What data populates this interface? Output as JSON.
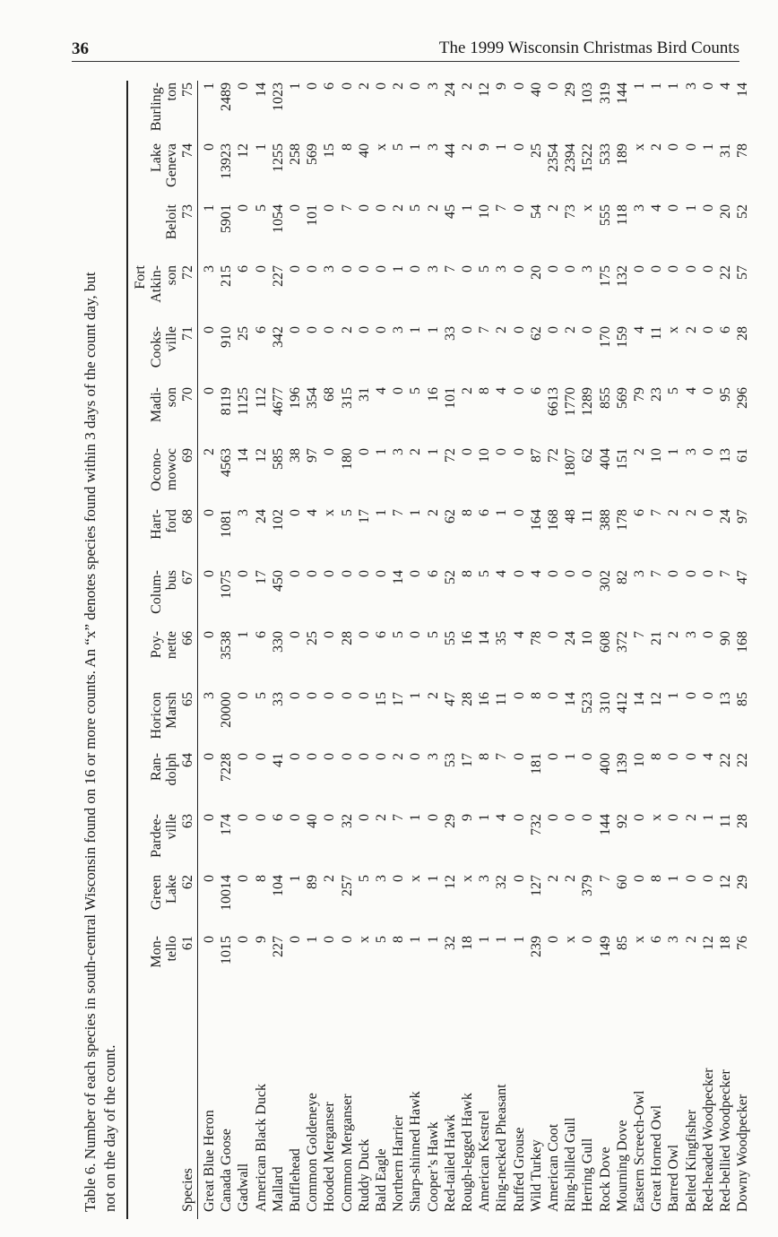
{
  "header": {
    "page_number": "36",
    "title": "The 1999 Wisconsin Christmas Bird Counts"
  },
  "table": {
    "caption_line1": "Table 6. Number of each species in south-central Wisconsin found on 16 or more counts. An “x” denotes species found within 3 days of the count day, but",
    "caption_line2": "not on the day of the count.",
    "species_header": "Species",
    "columns": [
      {
        "lines": [
          "Mon-",
          "tello"
        ],
        "number": "61"
      },
      {
        "lines": [
          "Green",
          "Lake"
        ],
        "number": "62"
      },
      {
        "lines": [
          "Pardee-",
          "ville"
        ],
        "number": "63"
      },
      {
        "lines": [
          "Ran-",
          "dolph"
        ],
        "number": "64"
      },
      {
        "lines": [
          "Horicon",
          "Marsh"
        ],
        "number": "65"
      },
      {
        "lines": [
          "Poy-",
          "nette"
        ],
        "number": "66"
      },
      {
        "lines": [
          "Colum-",
          "bus"
        ],
        "number": "67"
      },
      {
        "lines": [
          "Hart-",
          "ford"
        ],
        "number": "68"
      },
      {
        "lines": [
          "Ocono-",
          "mowoc"
        ],
        "number": "69"
      },
      {
        "lines": [
          "Madi-",
          "son"
        ],
        "number": "70"
      },
      {
        "lines": [
          "Cooks-",
          "ville"
        ],
        "number": "71"
      },
      {
        "lines": [
          "Fort",
          "Atkin-",
          "son"
        ],
        "number": "72"
      },
      {
        "lines": [
          "Beloit"
        ],
        "number": "73"
      },
      {
        "lines": [
          "Lake",
          "Geneva"
        ],
        "number": "74"
      },
      {
        "lines": [
          "Burling-",
          "ton"
        ],
        "number": "75"
      }
    ],
    "rows": [
      {
        "species": "Great Blue Heron",
        "values": [
          "0",
          "0",
          "0",
          "0",
          "3",
          "0",
          "0",
          "0",
          "2",
          "0",
          "0",
          "3",
          "1",
          "0",
          "1"
        ]
      },
      {
        "species": "Canada Goose",
        "values": [
          "1015",
          "10014",
          "174",
          "7228",
          "20000",
          "3538",
          "1075",
          "1081",
          "4563",
          "8119",
          "910",
          "215",
          "5901",
          "13923",
          "2489"
        ]
      },
      {
        "species": "Gadwall",
        "values": [
          "0",
          "0",
          "0",
          "0",
          "0",
          "1",
          "0",
          "3",
          "14",
          "1125",
          "25",
          "6",
          "0",
          "12",
          "0"
        ]
      },
      {
        "species": "American Black Duck",
        "values": [
          "9",
          "8",
          "0",
          "0",
          "5",
          "6",
          "17",
          "24",
          "12",
          "112",
          "6",
          "0",
          "5",
          "1",
          "14"
        ]
      },
      {
        "species": "Mallard",
        "values": [
          "227",
          "104",
          "6",
          "41",
          "33",
          "330",
          "450",
          "102",
          "585",
          "4677",
          "342",
          "227",
          "1054",
          "1255",
          "1023"
        ]
      },
      {
        "species": "Bufflehead",
        "values": [
          "0",
          "1",
          "0",
          "0",
          "0",
          "0",
          "0",
          "0",
          "38",
          "196",
          "0",
          "0",
          "0",
          "258",
          "1"
        ]
      },
      {
        "species": "Common Goldeneye",
        "values": [
          "1",
          "89",
          "40",
          "0",
          "0",
          "25",
          "0",
          "4",
          "97",
          "354",
          "0",
          "0",
          "101",
          "569",
          "0"
        ]
      },
      {
        "species": "Hooded Merganser",
        "values": [
          "0",
          "2",
          "0",
          "0",
          "0",
          "0",
          "0",
          "x",
          "0",
          "68",
          "0",
          "3",
          "0",
          "15",
          "6"
        ]
      },
      {
        "species": "Common Merganser",
        "values": [
          "0",
          "257",
          "32",
          "0",
          "0",
          "28",
          "0",
          "5",
          "180",
          "315",
          "2",
          "0",
          "7",
          "8",
          "0"
        ]
      },
      {
        "species": "Ruddy Duck",
        "values": [
          "x",
          "5",
          "0",
          "0",
          "0",
          "0",
          "0",
          "17",
          "0",
          "31",
          "0",
          "0",
          "0",
          "40",
          "2"
        ]
      },
      {
        "species": "Bald Eagle",
        "values": [
          "5",
          "3",
          "2",
          "0",
          "15",
          "6",
          "0",
          "1",
          "1",
          "4",
          "0",
          "0",
          "0",
          "x",
          "0"
        ]
      },
      {
        "species": "Northern Harrier",
        "values": [
          "8",
          "0",
          "7",
          "2",
          "17",
          "5",
          "14",
          "7",
          "3",
          "0",
          "3",
          "1",
          "2",
          "5",
          "2"
        ]
      },
      {
        "species": "Sharp-shinned Hawk",
        "values": [
          "1",
          "x",
          "1",
          "0",
          "1",
          "0",
          "0",
          "1",
          "2",
          "5",
          "1",
          "0",
          "5",
          "1",
          "0"
        ]
      },
      {
        "species": "Cooper’s Hawk",
        "values": [
          "1",
          "1",
          "0",
          "3",
          "2",
          "5",
          "6",
          "2",
          "1",
          "16",
          "1",
          "3",
          "2",
          "3",
          "3"
        ]
      },
      {
        "species": "Red-tailed Hawk",
        "values": [
          "32",
          "12",
          "29",
          "53",
          "47",
          "55",
          "52",
          "62",
          "72",
          "101",
          "33",
          "7",
          "45",
          "44",
          "24"
        ]
      },
      {
        "species": "Rough-legged Hawk",
        "values": [
          "18",
          "x",
          "9",
          "17",
          "28",
          "16",
          "8",
          "8",
          "0",
          "2",
          "0",
          "0",
          "1",
          "2",
          "2"
        ]
      },
      {
        "species": "American Kestrel",
        "values": [
          "1",
          "3",
          "1",
          "8",
          "16",
          "14",
          "5",
          "6",
          "10",
          "8",
          "7",
          "5",
          "10",
          "9",
          "12"
        ]
      },
      {
        "species": "Ring-necked Pheasant",
        "values": [
          "1",
          "32",
          "4",
          "7",
          "11",
          "35",
          "4",
          "1",
          "0",
          "4",
          "2",
          "3",
          "7",
          "1",
          "9"
        ]
      },
      {
        "species": "Ruffed Grouse",
        "values": [
          "1",
          "0",
          "0",
          "0",
          "0",
          "4",
          "0",
          "0",
          "0",
          "0",
          "0",
          "0",
          "0",
          "0",
          "0"
        ]
      },
      {
        "species": "Wild Turkey",
        "values": [
          "239",
          "127",
          "732",
          "181",
          "8",
          "78",
          "4",
          "164",
          "87",
          "6",
          "62",
          "20",
          "54",
          "25",
          "40"
        ]
      },
      {
        "species": "American Coot",
        "values": [
          "0",
          "2",
          "0",
          "0",
          "0",
          "0",
          "0",
          "168",
          "72",
          "6613",
          "0",
          "0",
          "2",
          "2354",
          "0"
        ]
      },
      {
        "species": "Ring-billed Gull",
        "values": [
          "x",
          "2",
          "0",
          "1",
          "14",
          "24",
          "0",
          "48",
          "1807",
          "1770",
          "2",
          "0",
          "73",
          "2394",
          "29"
        ]
      },
      {
        "species": "Herring Gull",
        "values": [
          "0",
          "379",
          "0",
          "0",
          "523",
          "10",
          "0",
          "11",
          "62",
          "1289",
          "0",
          "3",
          "x",
          "1522",
          "103"
        ]
      },
      {
        "species": "Rock Dove",
        "values": [
          "149",
          "7",
          "144",
          "400",
          "310",
          "608",
          "302",
          "388",
          "404",
          "855",
          "170",
          "175",
          "555",
          "533",
          "319"
        ]
      },
      {
        "species": "Mourning Dove",
        "values": [
          "85",
          "60",
          "92",
          "139",
          "412",
          "372",
          "82",
          "178",
          "151",
          "569",
          "159",
          "132",
          "118",
          "189",
          "144"
        ]
      },
      {
        "species": "Eastern Screech-Owl",
        "values": [
          "x",
          "0",
          "0",
          "10",
          "14",
          "7",
          "3",
          "6",
          "2",
          "79",
          "4",
          "0",
          "3",
          "x",
          "1"
        ]
      },
      {
        "species": "Great Horned Owl",
        "values": [
          "6",
          "8",
          "x",
          "8",
          "12",
          "21",
          "7",
          "7",
          "10",
          "23",
          "11",
          "0",
          "4",
          "2",
          "1"
        ]
      },
      {
        "species": "Barred Owl",
        "values": [
          "3",
          "1",
          "0",
          "0",
          "1",
          "2",
          "0",
          "2",
          "1",
          "5",
          "x",
          "0",
          "0",
          "0",
          "1"
        ]
      },
      {
        "species": "Belted Kingfisher",
        "values": [
          "2",
          "0",
          "2",
          "0",
          "0",
          "3",
          "0",
          "2",
          "3",
          "4",
          "2",
          "0",
          "1",
          "0",
          "3"
        ]
      },
      {
        "species": "Red-headed Woodpecker",
        "values": [
          "12",
          "0",
          "1",
          "4",
          "0",
          "0",
          "0",
          "0",
          "0",
          "0",
          "0",
          "0",
          "0",
          "1",
          "0"
        ]
      },
      {
        "species": "Red-bellied Woodpecker",
        "values": [
          "18",
          "12",
          "11",
          "22",
          "13",
          "90",
          "7",
          "24",
          "13",
          "95",
          "6",
          "22",
          "20",
          "31",
          "4"
        ]
      },
      {
        "species": "Downy Woodpecker",
        "values": [
          "76",
          "29",
          "28",
          "22",
          "85",
          "168",
          "47",
          "97",
          "61",
          "296",
          "28",
          "57",
          "52",
          "78",
          "14"
        ]
      }
    ]
  }
}
